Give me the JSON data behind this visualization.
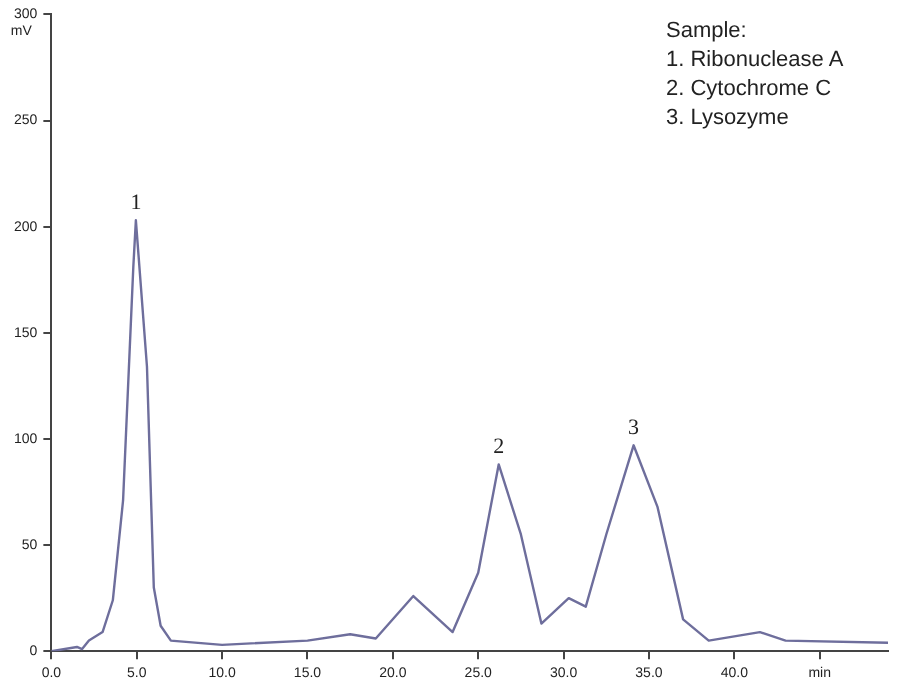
{
  "chart_data": {
    "type": "line",
    "ylabel": "mV",
    "x": [
      0,
      1.5,
      1.8,
      2.2,
      3.0,
      3.6,
      4.2,
      4.8,
      4.95,
      5.6,
      6.0,
      6.4,
      7,
      10,
      15,
      17.5,
      19,
      21.2,
      23.5,
      25,
      26.2,
      27.5,
      28.7,
      30.3,
      31.3,
      32.5,
      34.1,
      35.5,
      37,
      38.5,
      41.5,
      43,
      49
    ],
    "series": [
      {
        "color": "#6e6e9c",
        "values": [
          0,
          2,
          1,
          5,
          9,
          24,
          71,
          181,
          203,
          134,
          30,
          12,
          5,
          3,
          5,
          8,
          6,
          26,
          9,
          37,
          88,
          55,
          13,
          25,
          21,
          55,
          97,
          68,
          15,
          5,
          9,
          5,
          4
        ]
      }
    ],
    "xlim": [
      0,
      49
    ],
    "xticks": [
      {
        "value": 0,
        "label": "0.0"
      },
      {
        "value": 5,
        "label": "5.0"
      },
      {
        "value": 10,
        "label": "10.0"
      },
      {
        "value": 15,
        "label": "15.0"
      },
      {
        "value": 20,
        "label": "20.0"
      },
      {
        "value": 25,
        "label": "25.0"
      },
      {
        "value": 30,
        "label": "30.0"
      },
      {
        "value": 35,
        "label": "35.0"
      },
      {
        "value": 40,
        "label": "40.0"
      },
      {
        "value": 45,
        "label": "min"
      }
    ],
    "ylim": [
      0,
      300
    ],
    "yticks": [
      0,
      50,
      100,
      150,
      200,
      250,
      300
    ],
    "annotations": [
      {
        "text": "1",
        "x": 4.95,
        "y": 203
      },
      {
        "text": "2",
        "x": 26.2,
        "y": 88
      },
      {
        "text": "3",
        "x": 34.1,
        "y": 97
      },
      "Sample:\n1. Ribonuclease A\n2. Cytochrome C\n3. Lysozyme"
    ],
    "grid": false,
    "legend": false,
    "marker": "none",
    "line_style": "solid"
  }
}
